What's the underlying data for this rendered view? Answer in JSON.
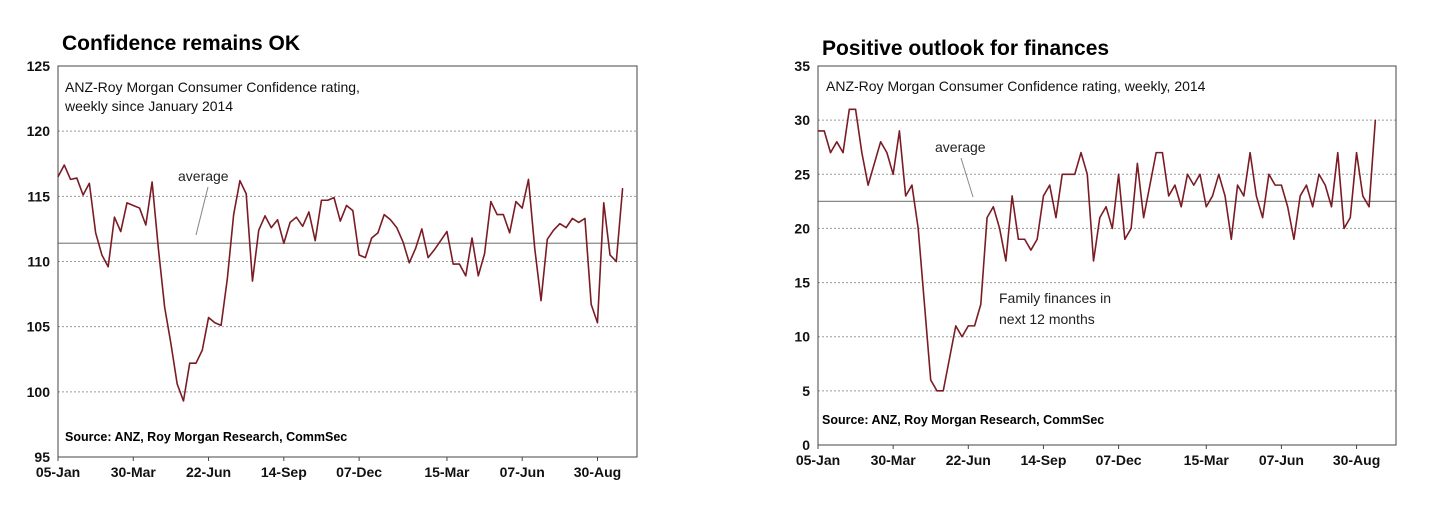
{
  "colors": {
    "series": "#7b1c24",
    "grid": "#9a9a9a",
    "frame": "#444444",
    "average": "#888888"
  },
  "chart_data": [
    {
      "type": "line",
      "title": "Confidence remains OK",
      "subtitle_lines": [
        "ANZ-Roy Morgan Consumer Confidence rating,",
        "weekly since January 2014"
      ],
      "source": "Source: ANZ, Roy Morgan Research, CommSec",
      "annotation": "average",
      "average": 111.4,
      "ylim": [
        95,
        125
      ],
      "yticks": [
        "125",
        "120",
        "115",
        "110",
        "105",
        "100",
        "95"
      ],
      "xticks": [
        "05-Jan",
        "30-Mar",
        "22-Jun",
        "14-Sep",
        "07-Dec",
        "15-Mar",
        "07-Jun",
        "30-Aug"
      ],
      "xtick_weeks": [
        0,
        12,
        24,
        36,
        48,
        62,
        74,
        86
      ],
      "grid": true,
      "series": [
        {
          "values": [
            116.5,
            117.4,
            116.3,
            116.4,
            115.1,
            116.0,
            112.2,
            110.5,
            109.6,
            113.4,
            112.3,
            114.5,
            114.3,
            114.1,
            112.8,
            116.1,
            111.0,
            106.5,
            103.7,
            100.6,
            99.3,
            102.2,
            102.2,
            103.2,
            105.7,
            105.3,
            105.1,
            108.7,
            113.6,
            116.2,
            115.2,
            108.5,
            112.4,
            113.5,
            112.6,
            113.2,
            111.4,
            113.0,
            113.4,
            112.7,
            113.8,
            111.6,
            114.7,
            114.7,
            114.9,
            113.1,
            114.3,
            113.9,
            110.5,
            110.3,
            111.8,
            112.2,
            113.6,
            113.2,
            112.6,
            111.5,
            109.9,
            111.0,
            112.5,
            110.3,
            110.9,
            111.6,
            112.3,
            109.8,
            109.8,
            108.9,
            111.8,
            108.9,
            110.6,
            114.6,
            113.6,
            113.6,
            112.2,
            114.6,
            114.1,
            116.3,
            111.0,
            107.0,
            111.7,
            112.4,
            112.9,
            112.6,
            113.3,
            113.0,
            113.3,
            106.7,
            105.3,
            114.5,
            110.5,
            110.0,
            115.6
          ]
        }
      ]
    },
    {
      "type": "line",
      "title": "Positive outlook for finances",
      "subtitle_lines": [
        "ANZ-Roy Morgan Consumer Confidence rating, weekly, 2014"
      ],
      "source": "Source: ANZ, Roy Morgan Research, CommSec",
      "annotation": "average",
      "series_label_lines": [
        "Family finances in",
        "next 12 months"
      ],
      "average": 22.5,
      "ylim": [
        0,
        35
      ],
      "yticks": [
        "35",
        "30",
        "25",
        "20",
        "15",
        "10",
        "5",
        "0"
      ],
      "xticks": [
        "05-Jan",
        "30-Mar",
        "22-Jun",
        "14-Sep",
        "07-Dec",
        "15-Mar",
        "07-Jun",
        "30-Aug"
      ],
      "xtick_weeks": [
        0,
        12,
        24,
        36,
        48,
        62,
        74,
        86
      ],
      "grid": true,
      "series": [
        {
          "values": [
            29,
            29,
            27,
            28,
            27,
            31,
            31,
            27,
            24,
            26,
            28,
            27,
            25,
            29,
            23,
            24,
            20,
            13,
            6,
            5,
            5,
            8,
            11,
            10,
            11,
            11,
            13,
            21,
            22,
            20,
            17,
            23,
            19,
            19,
            18,
            19,
            23,
            24,
            21,
            25,
            25,
            25,
            27,
            25,
            17,
            21,
            22,
            20,
            25,
            19,
            20,
            26,
            21,
            24,
            27,
            27,
            23,
            24,
            22,
            25,
            24,
            25,
            22,
            23,
            25,
            23,
            19,
            24,
            23,
            27,
            23,
            21,
            25,
            24,
            24,
            22,
            19,
            23,
            24,
            22,
            25,
            24,
            22,
            27,
            20,
            21,
            27,
            23,
            22,
            30
          ]
        }
      ]
    }
  ]
}
